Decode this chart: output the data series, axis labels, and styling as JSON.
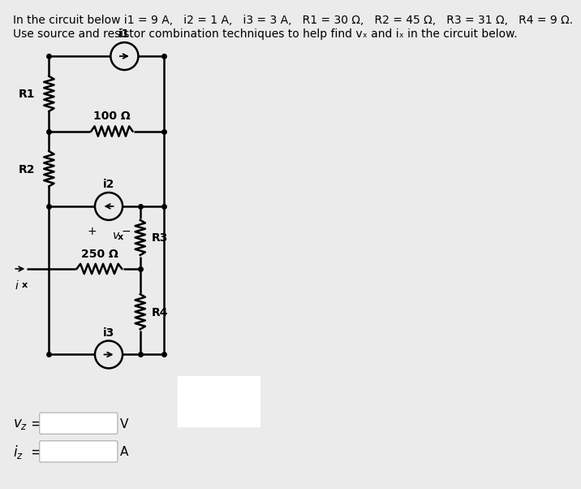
{
  "bg_color": "#ebebeb",
  "title_line1": "In the circuit below i1 = 9 A,   i2 = 1 A,   i3 = 3 A,   R1 = 30 Ω,   R2 = 45 Ω,   R3 = 31 Ω,   R4 = 9 Ω.",
  "title_line2": "Use source and resistor combination techniques to help find vₓ and iₓ in the circuit below.",
  "r_100_label": "100 Ω",
  "r_250_label": "250 Ω",
  "r3_label": "R3",
  "r4_label": "R4",
  "r1_label": "R1",
  "r2_label": "R2",
  "i1_label": "i1",
  "i2_label": "i2",
  "i3_label": "i3",
  "ix_label": "i",
  "ix_sub": "x",
  "vx_label": "v",
  "vx_sub": "x",
  "unit1": "V",
  "unit2": "A",
  "font_size_title": 10,
  "font_size_circuit": 9,
  "lw": 1.8
}
